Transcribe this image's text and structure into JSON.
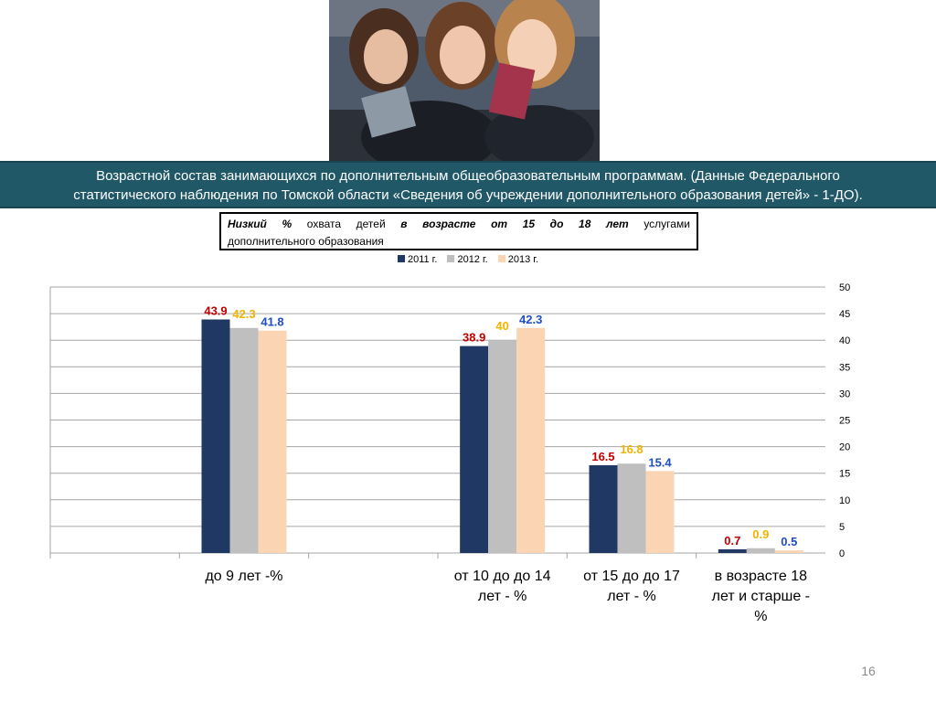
{
  "banner": {
    "line1": "Возрастной  состав  занимающихся по    дополнительным  общеобразовательным  программам. (Данные Федерального",
    "line2": "статистического наблюдения по Томской области «Сведения об учреждении дополнительного образования детей» - 1-ДО)."
  },
  "subtitle": {
    "w1": "Низкий",
    "w2": "%",
    "w3": "охвата",
    "w4": "детей",
    "w5": "в",
    "w6": "возрасте",
    "w7": "от",
    "w8": "15",
    "w9": "до",
    "w10": "18",
    "w11": "лет",
    "w12": "услугами",
    "line2": "дополнительного  образования"
  },
  "colors": {
    "2011": "#1f3864",
    "2012": "#bfbfbf",
    "2013": "#fbd4b4",
    "label_2011": "#c00000",
    "label_2012": "#f0b400",
    "label_2013": "#1f4ec0"
  },
  "page_number": "16",
  "chart_data": {
    "type": "bar",
    "categories": [
      "до 9 лет -%",
      "от 10 до  до 14 лет - %",
      "от 15 до  до 17 лет -  %",
      "в возрасте 18 лет и старше  - %"
    ],
    "category_lines": [
      [
        "до 9 лет -%"
      ],
      [
        "от 10 до  до 14",
        "лет - %"
      ],
      [
        "от 15 до  до 17",
        "лет -  %"
      ],
      [
        "в возрасте 18",
        "лет и старше  -",
        "%"
      ]
    ],
    "series": [
      {
        "name": "2011 г.",
        "values": [
          43.9,
          38.9,
          16.5,
          0.7
        ],
        "labels": [
          "43.9",
          "38.9",
          "16.5",
          "0.7"
        ]
      },
      {
        "name": "2012 г.",
        "values": [
          42.3,
          40,
          16.8,
          0.9
        ],
        "labels": [
          "42.3",
          "40",
          "16.8",
          "0.9"
        ]
      },
      {
        "name": "2013 г.",
        "values": [
          41.8,
          42.3,
          15.4,
          0.5
        ],
        "labels": [
          "41.8",
          "42.3",
          "15.4",
          "0.5"
        ]
      }
    ],
    "ylim": [
      0,
      50
    ],
    "yticks": [
      0,
      5,
      10,
      15,
      20,
      25,
      30,
      35,
      40,
      45,
      50
    ],
    "y_axis_side": "right",
    "grid": true,
    "legend": "top-center"
  }
}
